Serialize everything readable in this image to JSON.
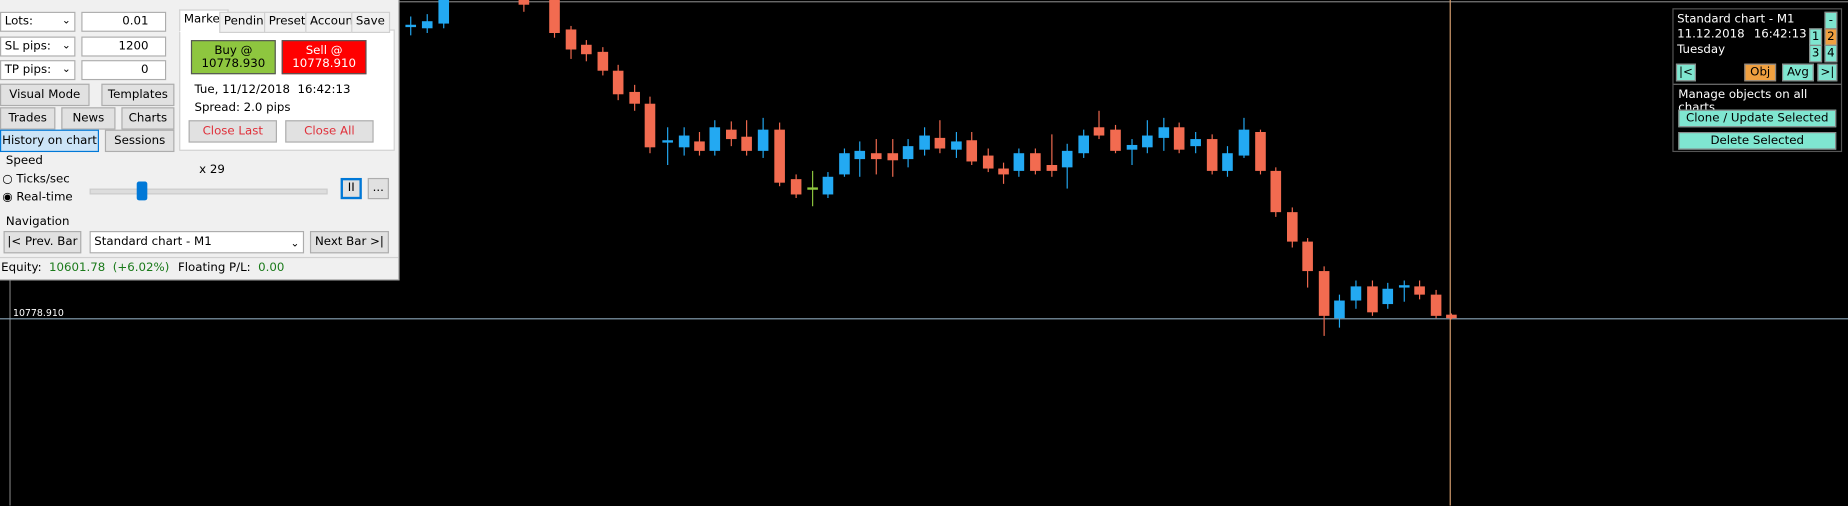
{
  "panel": {
    "lots_label": "Lots:",
    "lots_value": "0.01",
    "sl_label": "SL pips:",
    "sl_value": "1200",
    "tp_label": "TP pips:",
    "tp_value": "0",
    "buttons": [
      "Visual Mode",
      "Templates",
      "Trades",
      "News",
      "Charts",
      "History on chart",
      "Sessions"
    ],
    "tabs": [
      "Market",
      "Pending",
      "Presets",
      "Account",
      "Save"
    ],
    "buy": {
      "line1": "Buy @",
      "line2": "10778.930"
    },
    "sell": {
      "line1": "Sell @",
      "line2": "10778.910"
    },
    "datetime": "Tue, 11/12/2018  16:42:13",
    "spread": "Spread: 2.0 pips",
    "close_last": "Close Last",
    "close_all": "Close All",
    "speed": {
      "title": "Speed",
      "multiplier": "x 29",
      "options": [
        "Ticks/sec",
        "Real-time"
      ],
      "pause": "II",
      "more": "..."
    },
    "navigation": {
      "title": "Navigation",
      "prev": "|< Prev. Bar",
      "chart": "Standard chart - M1",
      "next": "Next Bar >|"
    },
    "status": {
      "equity_label": "Equity:",
      "equity": "10601.78",
      "equity_change": "(+6.02%)",
      "pl_label": "Floating P/L:",
      "pl": "0.00"
    }
  },
  "chart": {
    "price_label": "10778.910"
  },
  "info_panel": {
    "title": "Standard chart - M1",
    "date": "11.12.2018",
    "time": "16:42:13",
    "weekday": "Tuesday",
    "minus": "-",
    "numbers": [
      "1",
      "2",
      "3",
      "4"
    ],
    "buttons": [
      "|<",
      "Obj",
      "Avg",
      ">|"
    ],
    "manage": "Manage objects on all charts",
    "clone": "Clone / Update Selected",
    "delete": "Delete Selected"
  }
}
